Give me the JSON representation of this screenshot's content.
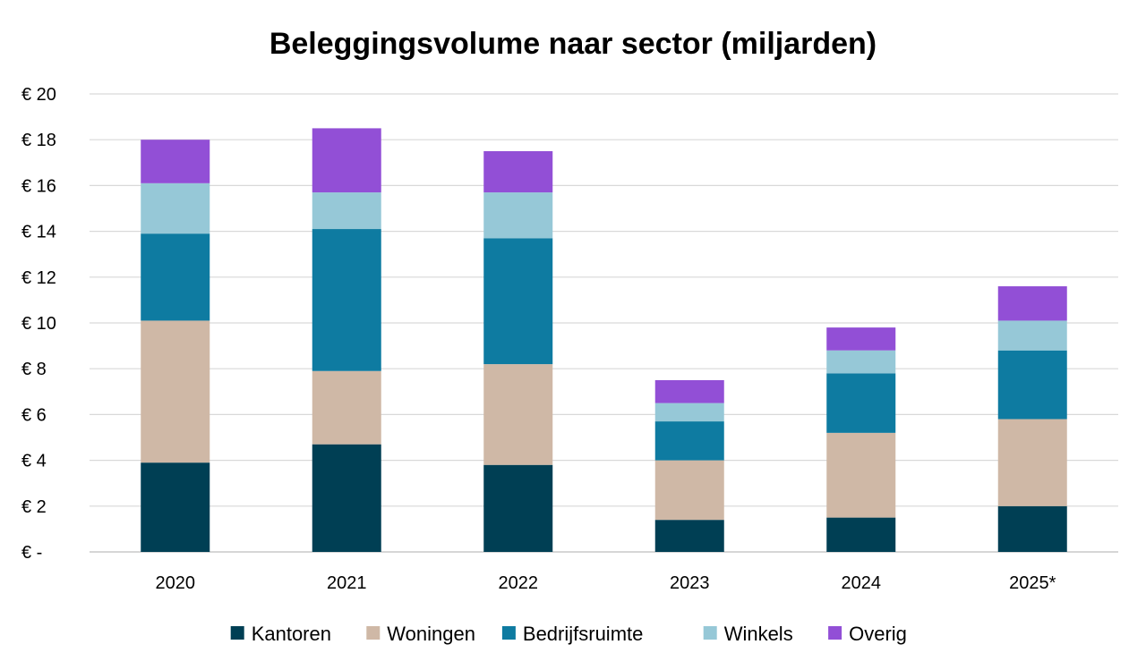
{
  "chart_data": {
    "type": "bar",
    "stacked": true,
    "title": "Beleggingsvolume naar sector (miljarden)",
    "xlabel": "",
    "ylabel": "",
    "categories": [
      "2020",
      "2021",
      "2022",
      "2023",
      "2024",
      "2025*"
    ],
    "ylim": [
      0,
      20
    ],
    "yticks": [
      0,
      2,
      4,
      6,
      8,
      10,
      12,
      14,
      16,
      18,
      20
    ],
    "ytick_labels": [
      "€ -",
      "€ 2",
      "€ 4",
      "€ 6",
      "€ 8",
      "€ 10",
      "€ 12",
      "€ 14",
      "€ 16",
      "€ 18",
      "€ 20"
    ],
    "grid": true,
    "legend_position": "bottom",
    "series": [
      {
        "name": "Kantoren",
        "color": "#003f54",
        "values": [
          3.9,
          4.7,
          3.8,
          1.4,
          1.5,
          2.0
        ]
      },
      {
        "name": "Woningen",
        "color": "#cfb8a6",
        "values": [
          6.2,
          3.2,
          4.4,
          2.6,
          3.7,
          3.8
        ]
      },
      {
        "name": "Bedrijfsruimte",
        "color": "#0e7ba1",
        "values": [
          3.8,
          6.2,
          5.5,
          1.7,
          2.6,
          3.0
        ]
      },
      {
        "name": "Winkels",
        "color": "#96c8d7",
        "values": [
          2.2,
          1.6,
          2.0,
          0.8,
          1.0,
          1.3
        ]
      },
      {
        "name": "Overig",
        "color": "#924fd6",
        "values": [
          1.9,
          2.8,
          1.8,
          1.0,
          1.0,
          1.5
        ]
      }
    ]
  }
}
